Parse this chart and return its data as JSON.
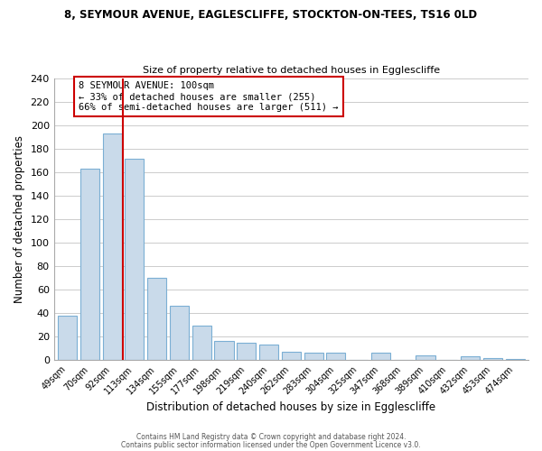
{
  "title1": "8, SEYMOUR AVENUE, EAGLESCLIFFE, STOCKTON-ON-TEES, TS16 0LD",
  "title2": "Size of property relative to detached houses in Egglescliffe",
  "xlabel": "Distribution of detached houses by size in Egglescliffe",
  "ylabel": "Number of detached properties",
  "bar_labels": [
    "49sqm",
    "70sqm",
    "92sqm",
    "113sqm",
    "134sqm",
    "155sqm",
    "177sqm",
    "198sqm",
    "219sqm",
    "240sqm",
    "262sqm",
    "283sqm",
    "304sqm",
    "325sqm",
    "347sqm",
    "368sqm",
    "389sqm",
    "410sqm",
    "432sqm",
    "453sqm",
    "474sqm"
  ],
  "bar_values": [
    38,
    163,
    193,
    171,
    70,
    46,
    29,
    16,
    15,
    13,
    7,
    6,
    6,
    0,
    6,
    0,
    4,
    0,
    3,
    2,
    1
  ],
  "bar_color": "#c9daea",
  "bar_edge_color": "#7bafd4",
  "vline_x": 2.5,
  "vline_color": "#cc0000",
  "annotation_title": "8 SEYMOUR AVENUE: 100sqm",
  "annotation_line1": "← 33% of detached houses are smaller (255)",
  "annotation_line2": "66% of semi-detached houses are larger (511) →",
  "annotation_box_color": "#ffffff",
  "annotation_border_color": "#cc0000",
  "ylim": [
    0,
    240
  ],
  "yticks": [
    0,
    20,
    40,
    60,
    80,
    100,
    120,
    140,
    160,
    180,
    200,
    220,
    240
  ],
  "footer1": "Contains HM Land Registry data © Crown copyright and database right 2024.",
  "footer2": "Contains public sector information licensed under the Open Government Licence v3.0.",
  "background_color": "#ffffff",
  "grid_color": "#cccccc"
}
